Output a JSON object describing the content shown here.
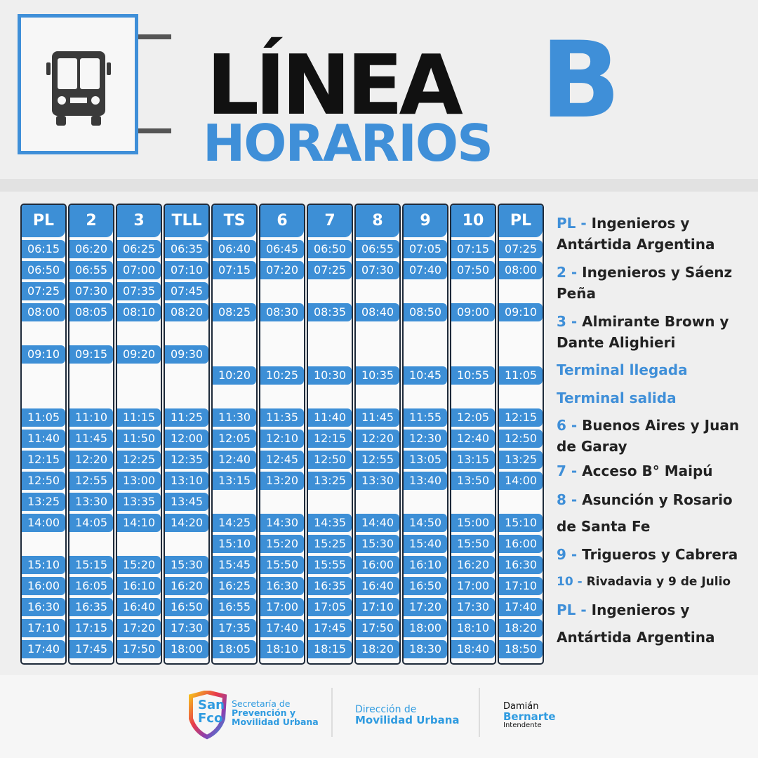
{
  "header": {
    "title": "LÍNEA",
    "subtitle": "HORARIOS",
    "line": "B",
    "icon": "bus-icon"
  },
  "colors": {
    "accent": "#3d8fd6",
    "dark": "#111111"
  },
  "table": {
    "columns": [
      "PL",
      "2",
      "3",
      "TLL",
      "TS",
      "6",
      "7",
      "8",
      "9",
      "10",
      "PL"
    ],
    "rows": [
      [
        "06:15",
        "06:20",
        "06:25",
        "06:35",
        "06:40",
        "06:45",
        "06:50",
        "06:55",
        "07:05",
        "07:15",
        "07:25"
      ],
      [
        "06:50",
        "06:55",
        "07:00",
        "07:10",
        "07:15",
        "07:20",
        "07:25",
        "07:30",
        "07:40",
        "07:50",
        "08:00"
      ],
      [
        "07:25",
        "07:30",
        "07:35",
        "07:45",
        "",
        "",
        "",
        "",
        "",
        "",
        ""
      ],
      [
        "08:00",
        "08:05",
        "08:10",
        "08:20",
        "08:25",
        "08:30",
        "08:35",
        "08:40",
        "08:50",
        "09:00",
        "09:10"
      ],
      [
        "",
        "",
        "",
        "",
        "",
        "",
        "",
        "",
        "",
        "",
        ""
      ],
      [
        "09:10",
        "09:15",
        "09:20",
        "09:30",
        "",
        "",
        "",
        "",
        "",
        "",
        ""
      ],
      [
        "",
        "",
        "",
        "",
        "10:20",
        "10:25",
        "10:30",
        "10:35",
        "10:45",
        "10:55",
        "11:05"
      ],
      [
        "",
        "",
        "",
        "",
        "",
        "",
        "",
        "",
        "",
        "",
        ""
      ],
      [
        "11:05",
        "11:10",
        "11:15",
        "11:25",
        "11:30",
        "11:35",
        "11:40",
        "11:45",
        "11:55",
        "12:05",
        "12:15"
      ],
      [
        "11:40",
        "11:45",
        "11:50",
        "12:00",
        "12:05",
        "12:10",
        "12:15",
        "12:20",
        "12:30",
        "12:40",
        "12:50"
      ],
      [
        "12:15",
        "12:20",
        "12:25",
        "12:35",
        "12:40",
        "12:45",
        "12:50",
        "12:55",
        "13:05",
        "13:15",
        "13:25"
      ],
      [
        "12:50",
        "12:55",
        "13:00",
        "13:10",
        "13:15",
        "13:20",
        "13:25",
        "13:30",
        "13:40",
        "13:50",
        "14:00"
      ],
      [
        "13:25",
        "13:30",
        "13:35",
        "13:45",
        "",
        "",
        "",
        "",
        "",
        "",
        ""
      ],
      [
        "14:00",
        "14:05",
        "14:10",
        "14:20",
        "14:25",
        "14:30",
        "14:35",
        "14:40",
        "14:50",
        "15:00",
        "15:10"
      ],
      [
        "",
        "",
        "",
        "",
        "15:10",
        "15:20",
        "15:25",
        "15:30",
        "15:40",
        "15:50",
        "16:00"
      ],
      [
        "15:10",
        "15:15",
        "15:20",
        "15:30",
        "15:45",
        "15:50",
        "15:55",
        "16:00",
        "16:10",
        "16:20",
        "16:30"
      ],
      [
        "16:00",
        "16:05",
        "16:10",
        "16:20",
        "16:25",
        "16:30",
        "16:35",
        "16:40",
        "16:50",
        "17:00",
        "17:10"
      ],
      [
        "16:30",
        "16:35",
        "16:40",
        "16:50",
        "16:55",
        "17:00",
        "17:05",
        "17:10",
        "17:20",
        "17:30",
        "17:40"
      ],
      [
        "17:10",
        "17:15",
        "17:20",
        "17:30",
        "17:35",
        "17:40",
        "17:45",
        "17:50",
        "18:00",
        "18:10",
        "18:20"
      ],
      [
        "17:40",
        "17:45",
        "17:50",
        "18:00",
        "18:05",
        "18:10",
        "18:15",
        "18:20",
        "18:30",
        "18:40",
        "18:50"
      ]
    ]
  },
  "legend": [
    {
      "code": "PL",
      "sep": " - ",
      "text": "Ingenieros y"
    },
    {
      "code": "",
      "sep": "",
      "text": "Antártida Argentina"
    },
    {
      "code": "2",
      "sep": " - ",
      "text": "Ingenieros y Sáenz"
    },
    {
      "code": "",
      "sep": "",
      "text": "Peña"
    },
    {
      "code": "3",
      "sep": " - ",
      "text": "Almirante Brown y"
    },
    {
      "code": "",
      "sep": "",
      "text": "Dante Alighieri"
    },
    {
      "code": "Terminal llegada",
      "sep": "",
      "text": ""
    },
    {
      "code": "Terminal salida",
      "sep": "",
      "text": ""
    },
    {
      "code": "6",
      "sep": " - ",
      "text": "Buenos Aires y Juan"
    },
    {
      "code": "",
      "sep": "",
      "text": "de Garay"
    },
    {
      "code": "7",
      "sep": " - ",
      "text": "Acceso B° Maipú"
    },
    {
      "code": "8",
      "sep": " - ",
      "text": "Asunción y Rosario"
    },
    {
      "code": "",
      "sep": "",
      "text": "de Santa Fe"
    },
    {
      "code": "9",
      "sep": " - ",
      "text": "Trigueros y Cabrera"
    },
    {
      "code": "10",
      "sep": " - ",
      "text": "Rivadavia y 9 de Julio"
    },
    {
      "code": "PL",
      "sep": " - ",
      "text": "Ingenieros y"
    },
    {
      "code": "",
      "sep": "",
      "text": "Antártida Argentina"
    }
  ],
  "footer": {
    "logo1_mark_top": "San",
    "logo1_mark_bottom": "Fco",
    "logo1_line1": "Secretaría de",
    "logo1_line2": "Prevención y",
    "logo1_line3": "Movilidad Urbana",
    "logo2_line1": "Dirección de",
    "logo2_line2": "Movilidad Urbana",
    "logo3_line1": "Damián",
    "logo3_line2": "Bernarte",
    "logo3_line3": "Intendente"
  }
}
